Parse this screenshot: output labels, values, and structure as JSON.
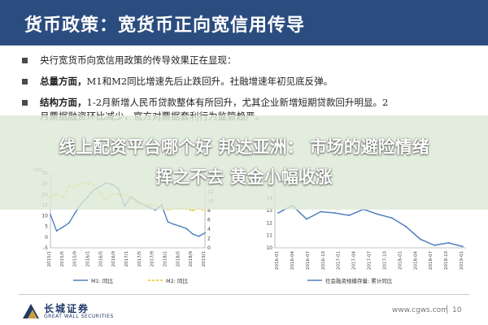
{
  "header": {
    "title": "货币政策：宽货币正向宽信用传导"
  },
  "bullets": [
    {
      "bold": "",
      "text": "央行宽货币向宽信用政策的传导效果正在显现：",
      "cont": ""
    },
    {
      "bold": "总量方面，",
      "text": "M1和M2同比增速先后止跌回升。社融增速年初见底反弹。",
      "cont": ""
    },
    {
      "bold": "结构方面，",
      "text": "1-2月新增人民币贷款整体有所回升，尤其企业新增短期贷款回升明显。2",
      "cont": "月票据融资环比减少，官方对票据套利行为监管趋严。"
    }
  ],
  "overlay": {
    "line1": "线上配资平台哪个好 邦达亚洲： 市场的避险情绪",
    "line2": "挥之不去 黄金小幅收涨"
  },
  "colors": {
    "header_bg": "#2b4c7e",
    "m1": "#4f81bd",
    "m2": "#f0c419",
    "shehui": "#4f81bd"
  },
  "left_chart": {
    "ylabel_left": "(%)",
    "y_left_ticks": [
      "30",
      "25",
      "20",
      "15",
      "10",
      "5",
      "0",
      "-5"
    ],
    "y_right_ticks": [
      "16",
      "14",
      "12",
      "10",
      "8",
      "6",
      "4",
      "2",
      "0"
    ],
    "x_ticks": [
      "2015/1",
      "2015/5",
      "2015/9",
      "2016/1",
      "2016/5",
      "2016/9",
      "2017/1",
      "2017/5",
      "2017/9",
      "2018/1",
      "2018/5",
      "2018/9",
      "2019/1"
    ],
    "legend": [
      {
        "name": "M1: 同比",
        "color": "#4f81bd",
        "dash": false
      },
      {
        "name": "M2: 同比",
        "color": "#f0c419",
        "dash": true
      }
    ]
  },
  "right_chart": {
    "y_ticks": [
      "16",
      "15",
      "14",
      "13",
      "12",
      "11",
      "10"
    ],
    "x_ticks": [
      "2016-01",
      "2016-04",
      "2016-07",
      "2016-10",
      "2017-01",
      "2017-04",
      "2017-07",
      "2017-10",
      "2018-01",
      "2018-04",
      "2018-07",
      "2018-10",
      "2019-01"
    ],
    "legend": [
      {
        "name": "社会融资规模存量: 累计同比",
        "color": "#4f81bd"
      }
    ]
  },
  "chart_data": [
    {
      "type": "line",
      "x": [
        "2015/1",
        "2015/3",
        "2015/5",
        "2015/7",
        "2015/9",
        "2015/11",
        "2016/1",
        "2016/3",
        "2016/5",
        "2016/7",
        "2016/9",
        "2016/11",
        "2017/1",
        "2017/3",
        "2017/5",
        "2017/7",
        "2017/9",
        "2017/11",
        "2018/1",
        "2018/3",
        "2018/5",
        "2018/7",
        "2018/9",
        "2018/11",
        "2019/1",
        "2019/2"
      ],
      "series": [
        {
          "name": "M1: 同比",
          "axis": "left",
          "values": [
            10.6,
            2.9,
            4.7,
            6.6,
            11.4,
            15.7,
            18.6,
            22.1,
            23.7,
            25.4,
            24.7,
            22.7,
            14.5,
            18.8,
            17.0,
            15.3,
            14.0,
            12.7,
            15.0,
            7.1,
            6.0,
            5.1,
            4.0,
            1.5,
            0.4,
            2.0
          ]
        },
        {
          "name": "M2: 同比",
          "axis": "right",
          "values": [
            10.8,
            11.6,
            10.8,
            13.3,
            13.1,
            13.7,
            14.0,
            13.4,
            11.8,
            10.2,
            11.5,
            11.4,
            11.3,
            10.6,
            9.6,
            9.2,
            9.2,
            9.1,
            8.6,
            8.2,
            8.3,
            8.5,
            8.3,
            8.0,
            8.4,
            8.0
          ]
        }
      ],
      "ylim_left": [
        -5,
        30
      ],
      "ylim_right": [
        0,
        16
      ],
      "ylabel": "(%)"
    },
    {
      "type": "line",
      "x": [
        "2016-01",
        "2016-04",
        "2016-07",
        "2016-10",
        "2017-01",
        "2017-04",
        "2017-07",
        "2017-10",
        "2018-01",
        "2018-04",
        "2018-07",
        "2018-10",
        "2019-01",
        "2019-02"
      ],
      "series": [
        {
          "name": "社会融资规模存量: 累计同比",
          "values": [
            12.8,
            13.4,
            12.3,
            12.9,
            12.8,
            12.6,
            13.1,
            12.7,
            12.4,
            11.7,
            10.7,
            10.2,
            10.4,
            10.1
          ]
        }
      ],
      "ylim": [
        10,
        16
      ]
    }
  ],
  "footer": {
    "logo_cn": "长城证券",
    "logo_en": "GREAT WALL SECURITIES",
    "site": "www.cgws.com",
    "page": "10"
  }
}
